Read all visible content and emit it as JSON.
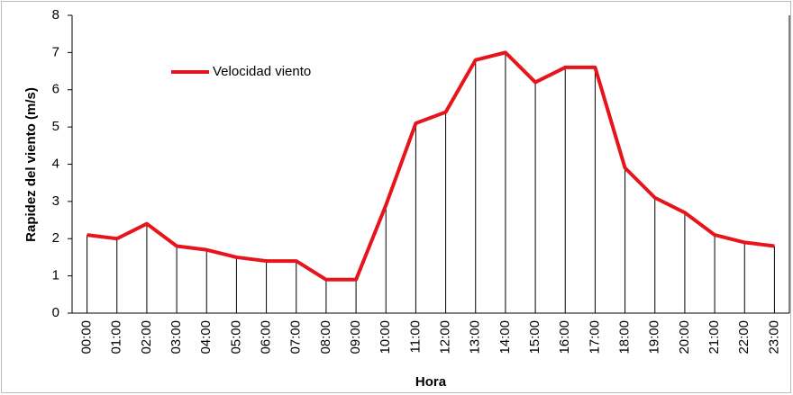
{
  "chart_data": {
    "type": "line",
    "x_label": "Hora",
    "y_label": "Rapidez del viento (m/s)",
    "categories": [
      "00:00",
      "01:00",
      "02:00",
      "03:00",
      "04:00",
      "05:00",
      "06:00",
      "07:00",
      "08:00",
      "09:00",
      "10:00",
      "11:00",
      "12:00",
      "13:00",
      "14:00",
      "15:00",
      "16:00",
      "17:00",
      "18:00",
      "19:00",
      "20:00",
      "21:00",
      "22:00",
      "23:00"
    ],
    "series": [
      {
        "name": "Velocidad viento",
        "color": "#e8141b",
        "values": [
          2.1,
          2.0,
          2.4,
          1.8,
          1.7,
          1.5,
          1.4,
          1.4,
          0.9,
          0.9,
          2.9,
          5.1,
          5.4,
          6.8,
          7.0,
          6.2,
          6.6,
          6.6,
          3.9,
          3.1,
          2.7,
          2.1,
          1.9,
          1.8
        ]
      }
    ],
    "ylim": [
      0,
      8
    ],
    "yticks": [
      0,
      1,
      2,
      3,
      4,
      5,
      6,
      7,
      8
    ],
    "drop_lines": true,
    "legend": "upper left"
  }
}
